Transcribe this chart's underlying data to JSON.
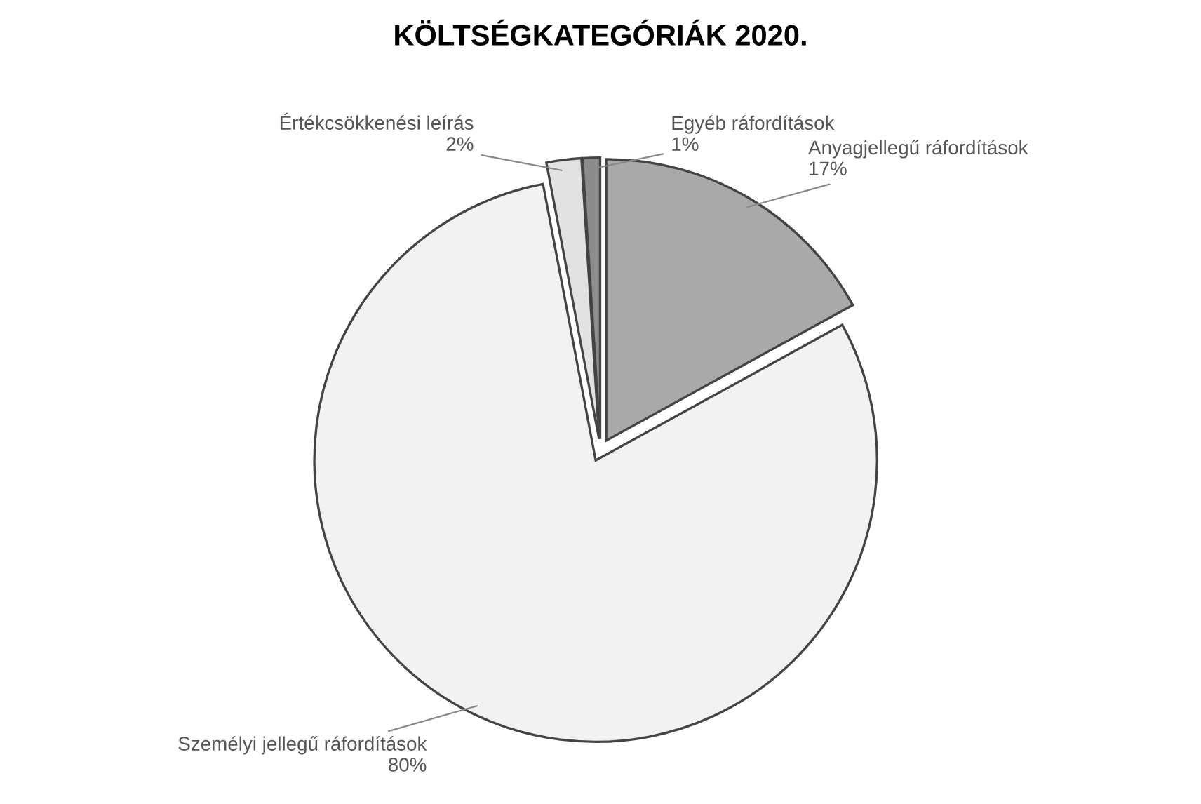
{
  "chart_data": {
    "type": "pie",
    "title": "KÖLTSÉGKATEGÓRIÁK 2020.",
    "categories": [
      "Anyagjellegű ráfordítások",
      "Személyi jellegű ráfordítások",
      "Értékcsökkenési leírás",
      "Egyéb ráfordítások"
    ],
    "values": [
      17,
      80,
      2,
      1
    ],
    "colors": [
      "#a9a9a9",
      "#f2f2f2",
      "#e2e2e2",
      "#8c8c8c"
    ],
    "value_labels": [
      "17%",
      "80%",
      "2%",
      "1%"
    ]
  }
}
